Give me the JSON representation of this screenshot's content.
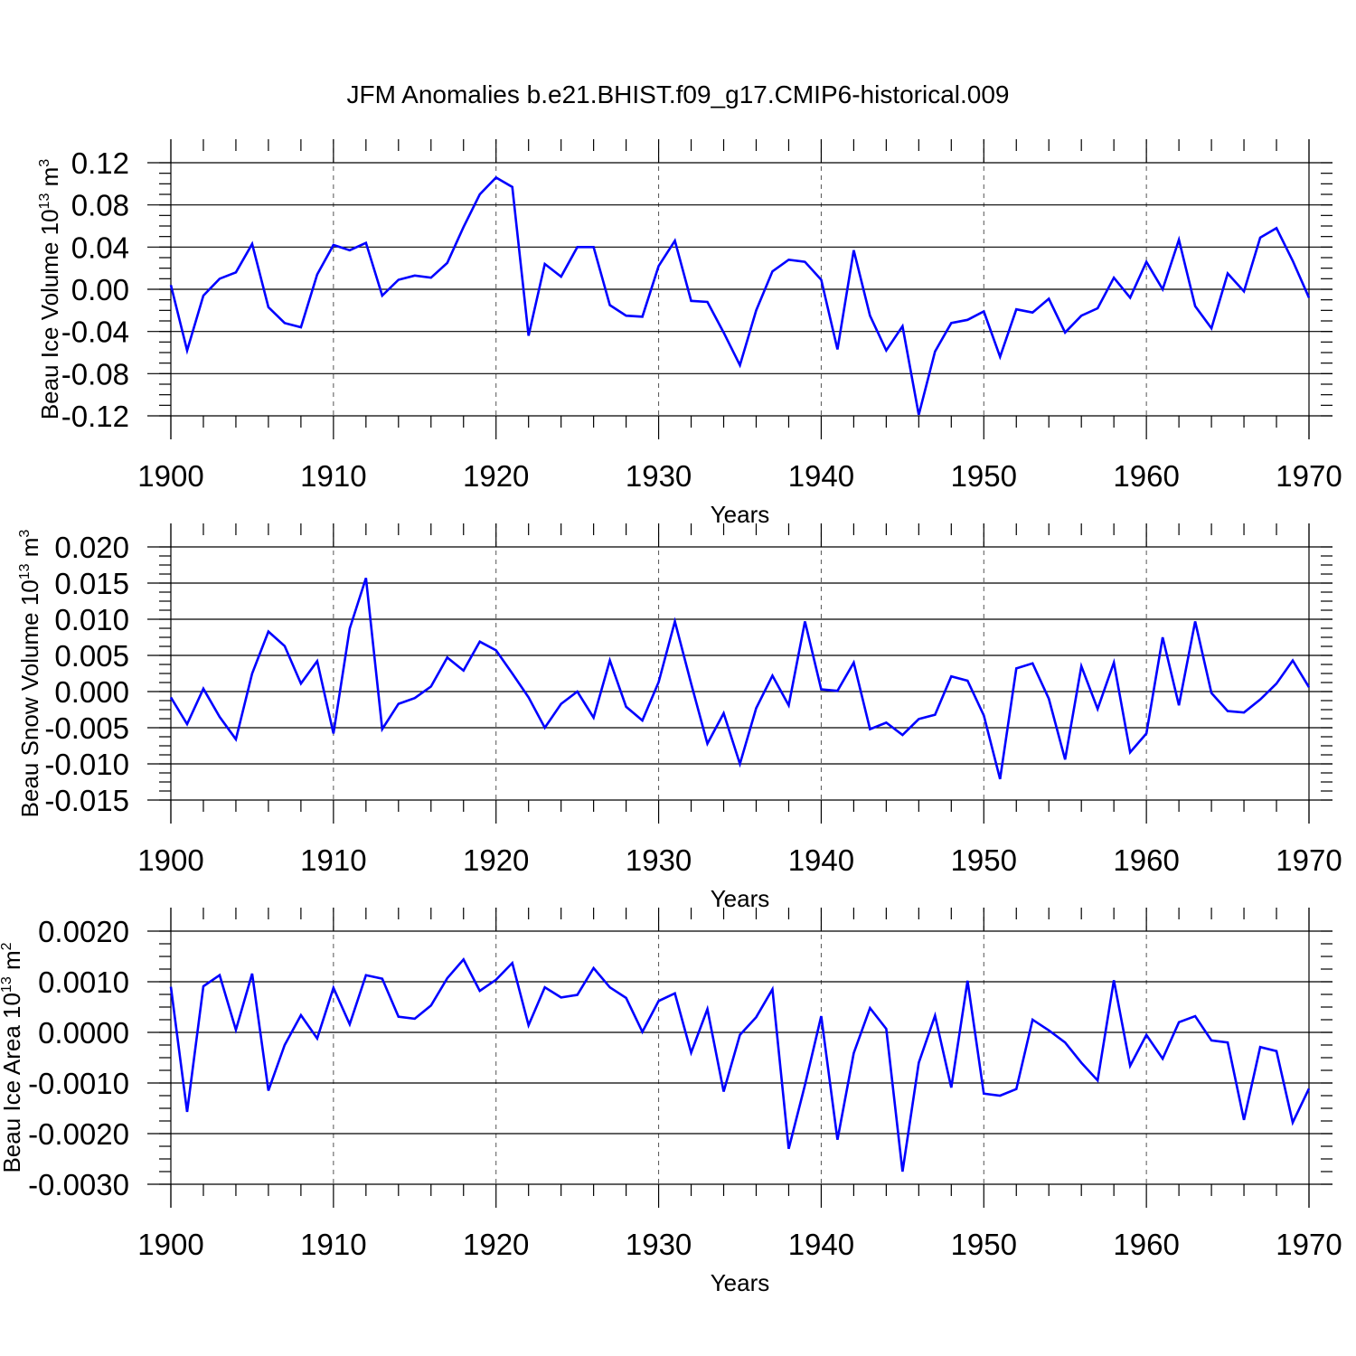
{
  "title": "JFM Anomalies b.e21.BHIST.f09_g17.CMIP6-historical.009",
  "chart_data": [
    {
      "type": "line",
      "title": "",
      "xlabel": "Years",
      "ylabel": "Beau Ice Volume 10",
      "ylabel_exp": "13",
      "ylabel_unit": " m",
      "ylabel_unit_exp": "3",
      "xlim": [
        1900,
        1970
      ],
      "ylim": [
        -0.12,
        0.12
      ],
      "yticks": [
        -0.12,
        -0.08,
        -0.04,
        0.0,
        0.04,
        0.08,
        0.12
      ],
      "ytick_labels": [
        "-0.12",
        "-0.08",
        "-0.04",
        "0.00",
        "0.04",
        "0.08",
        "0.12"
      ],
      "xticks": [
        1900,
        1910,
        1920,
        1930,
        1940,
        1950,
        1960,
        1970
      ],
      "xtick_labels": [
        "1900",
        "1910",
        "1920",
        "1930",
        "1940",
        "1950",
        "1960",
        "1970"
      ],
      "series": [
        {
          "name": "Beau Ice Volume",
          "color": "#0000ff",
          "x_start": 1900,
          "values": [
            0.004,
            -0.058,
            -0.006,
            0.01,
            0.016,
            0.043,
            -0.017,
            -0.032,
            -0.036,
            0.014,
            0.042,
            0.037,
            0.044,
            -0.006,
            0.009,
            0.013,
            0.011,
            0.025,
            0.059,
            0.09,
            0.106,
            0.097,
            -0.044,
            0.024,
            0.012,
            0.04,
            0.04,
            -0.015,
            -0.025,
            -0.026,
            0.022,
            0.046,
            -0.011,
            -0.012,
            -0.041,
            -0.072,
            -0.02,
            0.017,
            0.028,
            0.026,
            0.009,
            -0.057,
            0.037,
            -0.025,
            -0.058,
            -0.035,
            -0.119,
            -0.059,
            -0.032,
            -0.029,
            -0.021,
            -0.064,
            -0.019,
            -0.022,
            -0.009,
            -0.041,
            -0.025,
            -0.018,
            0.011,
            -0.008,
            0.026,
            0.0,
            0.047,
            -0.016,
            -0.037,
            0.015,
            -0.002,
            0.049,
            0.058,
            0.027,
            -0.008
          ]
        }
      ]
    },
    {
      "type": "line",
      "title": "",
      "xlabel": "Years",
      "ylabel": "Beau Snow Volume 10",
      "ylabel_exp": "13",
      "ylabel_unit": " m",
      "ylabel_unit_exp": "3",
      "xlim": [
        1900,
        1970
      ],
      "ylim": [
        -0.015,
        0.02
      ],
      "yticks": [
        -0.015,
        -0.01,
        -0.005,
        0.0,
        0.005,
        0.01,
        0.015,
        0.02
      ],
      "ytick_labels": [
        "-0.015",
        "-0.010",
        "-0.005",
        "0.000",
        "0.005",
        "0.010",
        "0.015",
        "0.020"
      ],
      "xticks": [
        1900,
        1910,
        1920,
        1930,
        1940,
        1950,
        1960,
        1970
      ],
      "xtick_labels": [
        "1900",
        "1910",
        "1920",
        "1930",
        "1940",
        "1950",
        "1960",
        "1970"
      ],
      "series": [
        {
          "name": "Beau Snow Volume",
          "color": "#0000ff",
          "x_start": 1900,
          "values": [
            -0.0008,
            -0.0045,
            0.0004,
            -0.0035,
            -0.0066,
            0.0025,
            0.0083,
            0.0063,
            0.0011,
            0.0042,
            -0.0058,
            0.0087,
            0.0157,
            -0.0052,
            -0.0017,
            -0.0009,
            0.0007,
            0.0047,
            0.0029,
            0.0069,
            0.0057,
            0.0025,
            -0.0008,
            -0.005,
            -0.0017,
            0.0,
            -0.0036,
            0.0043,
            -0.0021,
            -0.004,
            0.0013,
            0.0097,
            0.0011,
            -0.0072,
            -0.003,
            -0.01,
            -0.0023,
            0.0022,
            -0.0019,
            0.0097,
            0.0003,
            0.0001,
            0.004,
            -0.0052,
            -0.0043,
            -0.006,
            -0.0038,
            -0.0032,
            0.0021,
            0.0015,
            -0.0033,
            -0.0121,
            0.0032,
            0.0039,
            -0.001,
            -0.0094,
            0.0035,
            -0.0024,
            0.004,
            -0.0084,
            -0.0058,
            0.0075,
            -0.0019,
            0.0097,
            -0.0002,
            -0.0027,
            -0.0029,
            -0.0011,
            0.0011,
            0.0043,
            0.0006
          ]
        }
      ]
    },
    {
      "type": "line",
      "title": "",
      "xlabel": "Years",
      "ylabel": "Beau Ice Area 10",
      "ylabel_exp": "13",
      "ylabel_unit": " m",
      "ylabel_unit_exp": "2",
      "xlim": [
        1900,
        1970
      ],
      "ylim": [
        -0.003,
        0.002
      ],
      "yticks": [
        -0.003,
        -0.002,
        -0.001,
        0.0,
        0.001,
        0.002
      ],
      "ytick_labels": [
        "-0.0030",
        "-0.0020",
        "-0.0010",
        "0.0000",
        "0.0010",
        "0.0020"
      ],
      "xticks": [
        1900,
        1910,
        1920,
        1930,
        1940,
        1950,
        1960,
        1970
      ],
      "xtick_labels": [
        "1900",
        "1910",
        "1920",
        "1930",
        "1940",
        "1950",
        "1960",
        "1970"
      ],
      "series": [
        {
          "name": "Beau Ice Area",
          "color": "#0000ff",
          "x_start": 1900,
          "values": [
            0.0009,
            -0.00157,
            0.00091,
            0.00113,
            5e-05,
            0.00116,
            -0.00115,
            -0.00025,
            0.00034,
            -0.00012,
            0.00088,
            0.00016,
            0.00113,
            0.00106,
            0.00031,
            0.00027,
            0.00053,
            0.00107,
            0.00144,
            0.00082,
            0.00104,
            0.00137,
            0.00014,
            0.00089,
            0.00069,
            0.00074,
            0.00127,
            0.00089,
            0.00068,
            1e-05,
            0.00062,
            0.00077,
            -0.0004,
            0.00046,
            -0.00117,
            -5e-05,
            0.0003,
            0.00085,
            -0.0023,
            -0.00104,
            0.00032,
            -0.00212,
            -0.00041,
            0.00048,
            7e-05,
            -0.00275,
            -0.0006,
            0.00033,
            -0.00109,
            0.00102,
            -0.00121,
            -0.00125,
            -0.00112,
            0.00025,
            4e-05,
            -0.0002,
            -0.0006,
            -0.00095,
            0.00103,
            -0.00066,
            -5e-05,
            -0.00052,
            0.0002,
            0.00032,
            -0.00016,
            -0.0002,
            -0.00173,
            -0.00029,
            -0.00037,
            -0.00178,
            -0.00111
          ]
        }
      ]
    }
  ]
}
